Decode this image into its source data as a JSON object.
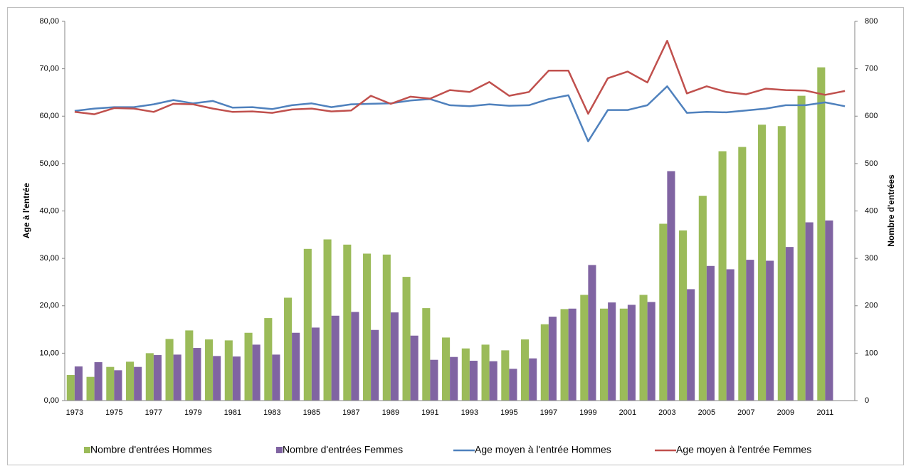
{
  "chart_data": {
    "type": "bar",
    "y_label": "Age à l'entrée",
    "y2_label": "Nombre d'entrées",
    "categories": [
      "1973",
      null,
      "1975",
      null,
      "1977",
      null,
      "1979",
      null,
      "1981",
      null,
      "1983",
      null,
      "1985",
      null,
      "1987",
      null,
      "1989",
      null,
      "1991",
      null,
      "1993",
      null,
      "1995",
      null,
      "1997",
      null,
      "1999",
      null,
      "2001",
      null,
      "2003",
      null,
      "2005",
      null,
      "2007",
      null,
      "2009",
      null,
      "2011",
      null
    ],
    "ylim": [
      0,
      80
    ],
    "yticks": [
      {
        "value": 0,
        "label": "0,00"
      },
      {
        "value": 10,
        "label": "10,00"
      },
      {
        "value": 20,
        "label": "20,00"
      },
      {
        "value": 30,
        "label": "30,00"
      },
      {
        "value": 40,
        "label": "40,00"
      },
      {
        "value": 50,
        "label": "50,00"
      },
      {
        "value": 60,
        "label": "60,00"
      },
      {
        "value": 70,
        "label": "70,00"
      },
      {
        "value": 80,
        "label": "80,00"
      }
    ],
    "y2lim": [
      0,
      800
    ],
    "y2ticks": [
      0,
      100,
      200,
      300,
      400,
      500,
      600,
      700,
      800
    ],
    "series": [
      {
        "name": "Nombre d'entrées Hommes",
        "type": "bar",
        "axis": "y2",
        "color": "#9bbb59",
        "values": [
          54,
          50,
          71,
          82,
          100,
          130,
          148,
          129,
          127,
          143,
          174,
          217,
          320,
          340,
          329,
          310,
          308,
          261,
          195,
          133,
          110,
          118,
          106,
          129,
          161,
          193,
          223,
          194,
          194,
          223,
          373,
          359,
          432,
          526,
          535,
          582,
          579,
          643,
          703,
          null
        ]
      },
      {
        "name": "Nombre d'entrées Femmes",
        "type": "bar",
        "axis": "y2",
        "color": "#8064a2",
        "values": [
          72,
          81,
          64,
          71,
          96,
          97,
          111,
          94,
          93,
          118,
          97,
          143,
          154,
          179,
          187,
          149,
          186,
          137,
          86,
          92,
          84,
          83,
          67,
          89,
          177,
          194,
          286,
          207,
          202,
          208,
          484,
          235,
          284,
          277,
          297,
          295,
          324,
          376,
          380,
          null
        ]
      },
      {
        "name": "Age moyen à l'entrée Hommes",
        "type": "line",
        "color": "#4f81bd",
        "values": [
          61.1,
          61.6,
          61.9,
          61.9,
          62.5,
          63.4,
          62.7,
          63.2,
          61.8,
          61.9,
          61.5,
          62.3,
          62.7,
          61.9,
          62.5,
          62.6,
          62.7,
          63.3,
          63.6,
          62.3,
          62.1,
          62.5,
          62.2,
          62.3,
          63.6,
          64.4,
          54.7,
          61.3,
          61.3,
          62.3,
          66.3,
          60.7,
          60.9,
          60.8,
          61.2,
          61.6,
          62.3,
          62.3,
          62.9,
          62.1
        ]
      },
      {
        "name": "Age moyen à l'entrée Femmes",
        "type": "line",
        "color": "#c0504d",
        "values": [
          60.9,
          60.4,
          61.7,
          61.6,
          60.9,
          62.6,
          62.5,
          61.6,
          60.9,
          61.0,
          60.7,
          61.4,
          61.6,
          61.0,
          61.2,
          64.3,
          62.6,
          64.1,
          63.7,
          65.5,
          65.1,
          67.2,
          64.3,
          65.1,
          69.6,
          69.6,
          60.5,
          68.0,
          69.4,
          67.1,
          75.9,
          64.8,
          66.3,
          65.1,
          64.6,
          65.8,
          65.5,
          65.4,
          64.5,
          65.3
        ]
      }
    ]
  }
}
